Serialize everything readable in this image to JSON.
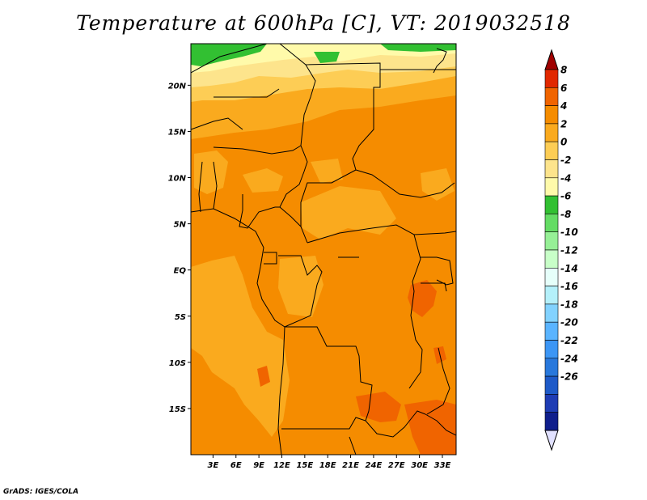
{
  "title": "Temperature at 600hPa [C], VT: 2019032518",
  "credit": "GrADS: IGES/COLA",
  "map": {
    "lat_ticks": [
      {
        "label": "20N",
        "lat": 20
      },
      {
        "label": "15N",
        "lat": 15
      },
      {
        "label": "10N",
        "lat": 10
      },
      {
        "label": "5N",
        "lat": 5
      },
      {
        "label": "EQ",
        "lat": 0
      },
      {
        "label": "5S",
        "lat": -5
      },
      {
        "label": "10S",
        "lat": -10
      },
      {
        "label": "15S",
        "lat": -15
      }
    ],
    "lon_ticks": [
      {
        "label": "3E",
        "lon": 3
      },
      {
        "label": "6E",
        "lon": 6
      },
      {
        "label": "9E",
        "lon": 9
      },
      {
        "label": "12E",
        "lon": 12
      },
      {
        "label": "15E",
        "lon": 15
      },
      {
        "label": "18E",
        "lon": 18
      },
      {
        "label": "21E",
        "lon": 21
      },
      {
        "label": "24E",
        "lon": 24
      },
      {
        "label": "27E",
        "lon": 27
      },
      {
        "label": "30E",
        "lon": 30
      },
      {
        "label": "33E",
        "lon": 33
      }
    ],
    "lon_range": [
      0.1,
      34.8
    ],
    "lat_range": [
      -20,
      24.5
    ]
  },
  "colorbar": {
    "labels": [
      "8",
      "6",
      "4",
      "2",
      "0",
      "-2",
      "-4",
      "-6",
      "-8",
      "-10",
      "-12",
      "-14",
      "-16",
      "-18",
      "-20",
      "-22",
      "-24",
      "-26"
    ],
    "colors": [
      "#a00000",
      "#e12800",
      "#f06400",
      "#f58c00",
      "#faaa1e",
      "#fdcd55",
      "#fde48c",
      "#fffaaa",
      "#32c032",
      "#64dc64",
      "#96f096",
      "#c8ffc8",
      "#e6fffa",
      "#b4f0fa",
      "#82d2ff",
      "#5ab4ff",
      "#3c96f5",
      "#2878dc",
      "#1e5ac8",
      "#1e3cb4",
      "#0f1e8c",
      "#e1e1ff"
    ]
  }
}
